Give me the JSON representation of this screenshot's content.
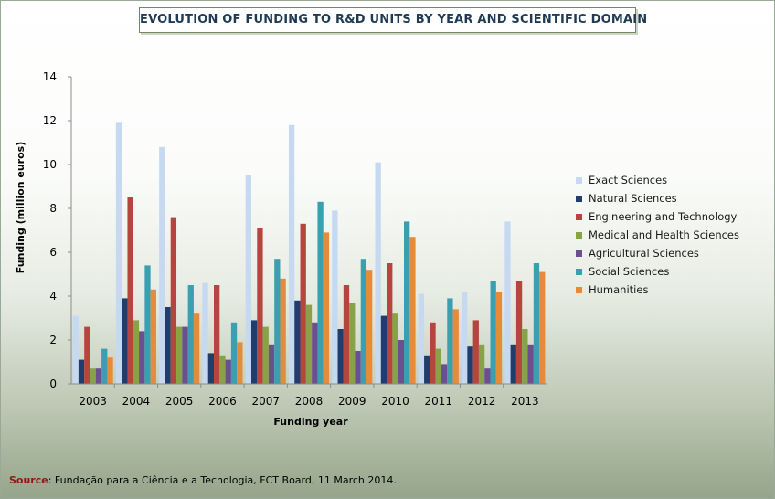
{
  "chart_data": {
    "type": "bar",
    "title": "EVOLUTION OF FUNDING TO R&D UNITS BY YEAR AND SCIENTIFIC DOMAIN",
    "xlabel": "Funding year",
    "ylabel": "Funding (million euros)",
    "ylim": [
      0,
      14
    ],
    "yticks": [
      "0",
      "2",
      "4",
      "6",
      "8",
      "10",
      "12",
      "14"
    ],
    "grid": false,
    "legend_position": "right",
    "categories": [
      "2003",
      "2004",
      "2005",
      "2006",
      "2007",
      "2008",
      "2009",
      "2010",
      "2011",
      "2012",
      "2013"
    ],
    "series": [
      {
        "name": "Exact Sciences",
        "color": "#c6d9f1",
        "values": [
          3.1,
          11.9,
          10.8,
          4.6,
          9.5,
          11.8,
          7.9,
          10.1,
          4.1,
          4.2,
          7.4
        ]
      },
      {
        "name": "Natural Sciences",
        "color": "#1f3e6e",
        "values": [
          1.1,
          3.9,
          3.5,
          1.4,
          2.9,
          3.8,
          2.5,
          3.1,
          1.3,
          1.7,
          1.8
        ]
      },
      {
        "name": "Engineering and Technology",
        "color": "#b64540",
        "values": [
          2.6,
          8.5,
          7.6,
          4.5,
          7.1,
          7.3,
          4.5,
          5.5,
          2.8,
          2.9,
          4.7
        ]
      },
      {
        "name": "Medical and Health Sciences",
        "color": "#88a347",
        "values": [
          0.7,
          2.9,
          2.6,
          1.3,
          2.6,
          3.6,
          3.7,
          3.2,
          1.6,
          1.8,
          2.5
        ]
      },
      {
        "name": "Agricultural Sciences",
        "color": "#6c4f8f",
        "values": [
          0.7,
          2.4,
          2.6,
          1.1,
          1.8,
          2.8,
          1.5,
          2.0,
          0.9,
          0.7,
          1.8
        ]
      },
      {
        "name": "Social Sciences",
        "color": "#3aa0b1",
        "values": [
          1.6,
          5.4,
          4.5,
          2.8,
          5.7,
          8.3,
          5.7,
          7.4,
          3.9,
          4.7,
          5.5
        ]
      },
      {
        "name": "Humanities",
        "color": "#e58b3c",
        "values": [
          1.2,
          4.3,
          3.2,
          1.9,
          4.8,
          6.9,
          5.2,
          6.7,
          3.4,
          4.2,
          5.1
        ]
      }
    ]
  },
  "source": {
    "label": "Source",
    "text": ": Fundação para a Ciência e a Tecnologia, FCT Board, 11 March  2014."
  }
}
